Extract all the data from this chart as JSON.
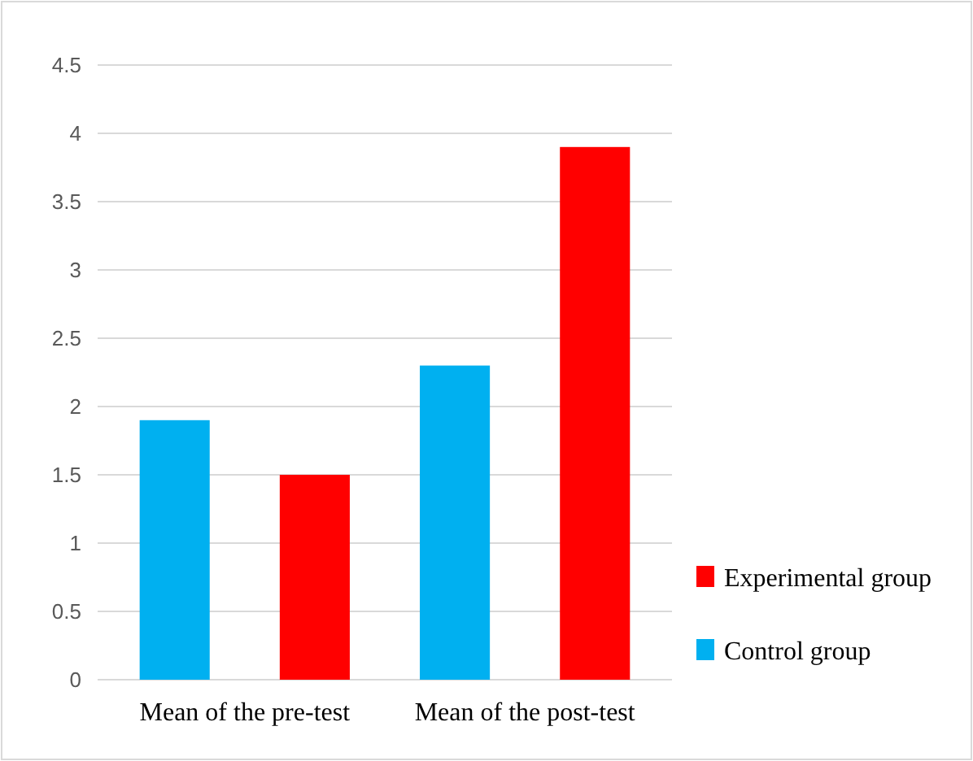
{
  "chart_data": {
    "type": "bar",
    "categories": [
      "Mean of the pre-test",
      "Mean of the post-test"
    ],
    "series": [
      {
        "name": "Control group",
        "color": "#00b0f0",
        "values": [
          1.9,
          2.3
        ]
      },
      {
        "name": "Experimental group",
        "color": "#ff0000",
        "values": [
          1.5,
          3.9
        ]
      }
    ],
    "ylim": [
      0,
      4.5
    ],
    "yticks": [
      0,
      0.5,
      1,
      1.5,
      2,
      2.5,
      3,
      3.5,
      4,
      4.5
    ],
    "grid": "y",
    "legend": "bottom right"
  }
}
